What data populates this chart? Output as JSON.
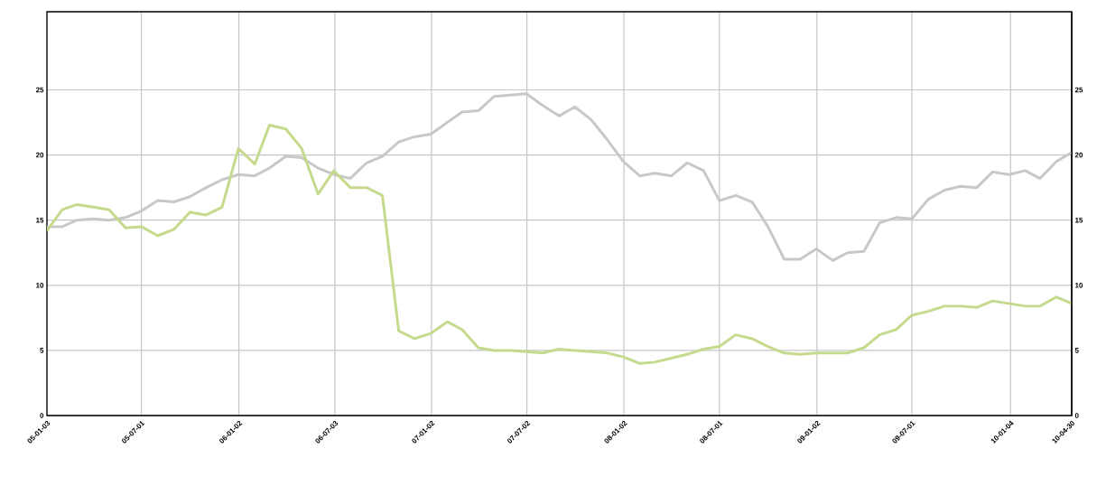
{
  "chart_data": {
    "type": "line",
    "x": [
      "2005-01-03",
      "2005-02",
      "2005-03",
      "2005-04",
      "2005-05",
      "2005-06",
      "2005-07",
      "2005-08",
      "2005-09",
      "2005-10",
      "2005-11",
      "2005-12",
      "2006-01",
      "2006-02",
      "2006-03",
      "2006-04",
      "2006-05",
      "2006-06",
      "2006-07",
      "2006-08",
      "2006-09",
      "2006-10",
      "2006-11",
      "2006-12",
      "2007-01",
      "2007-02",
      "2007-03",
      "2007-04",
      "2007-05",
      "2007-06",
      "2007-07",
      "2007-08",
      "2007-09",
      "2007-10",
      "2007-11",
      "2007-12",
      "2008-01",
      "2008-02",
      "2008-03",
      "2008-04",
      "2008-05",
      "2008-06",
      "2008-07",
      "2008-08",
      "2008-09",
      "2008-10",
      "2008-11",
      "2008-12",
      "2009-01",
      "2009-02",
      "2009-03",
      "2009-04",
      "2009-05",
      "2009-06",
      "2009-07",
      "2009-08",
      "2009-09",
      "2009-10",
      "2009-11",
      "2009-12",
      "2010-01",
      "2010-02",
      "2010-03",
      "2010-04",
      "2010-04-30"
    ],
    "series": [
      {
        "color": "#c8c8c8",
        "values": [
          14.5,
          14.5,
          15.0,
          15.1,
          15.0,
          15.2,
          15.7,
          16.5,
          16.4,
          16.8,
          17.5,
          18.1,
          18.5,
          18.4,
          19.0,
          19.9,
          19.8,
          19.0,
          18.5,
          18.2,
          19.4,
          19.9,
          21.0,
          21.4,
          21.6,
          22.5,
          23.3,
          23.4,
          24.5,
          24.6,
          24.7,
          23.8,
          23.0,
          23.7,
          22.7,
          21.2,
          19.5,
          18.4,
          18.6,
          18.4,
          19.4,
          18.8,
          16.5,
          16.9,
          16.4,
          14.5,
          12.0,
          12.0,
          12.8,
          11.9,
          12.5,
          12.6,
          14.8,
          15.2,
          15.1,
          16.6,
          17.3,
          17.6,
          17.5,
          18.7,
          18.5,
          18.8,
          18.2,
          19.5,
          20.2
        ]
      },
      {
        "color": "#c5da8c",
        "values": [
          14.2,
          15.8,
          16.2,
          16.0,
          15.8,
          14.4,
          14.5,
          13.8,
          14.3,
          15.6,
          15.4,
          16.0,
          20.5,
          19.3,
          22.3,
          22.0,
          20.5,
          17.0,
          18.8,
          17.5,
          17.5,
          16.9,
          6.5,
          5.9,
          6.3,
          7.2,
          6.6,
          5.2,
          5.0,
          5.0,
          4.9,
          4.8,
          5.1,
          5.0,
          4.9,
          4.8,
          4.5,
          4.0,
          4.1,
          4.4,
          4.7,
          5.1,
          5.3,
          6.2,
          5.9,
          5.3,
          4.8,
          4.7,
          4.8,
          4.8,
          4.8,
          5.2,
          6.2,
          6.6,
          7.7,
          8.0,
          8.4,
          8.4,
          8.3,
          8.8,
          8.6,
          8.4,
          8.4,
          9.1,
          8.6
        ]
      }
    ],
    "xlim": [
      "2005-01-03",
      "2010-04-30"
    ],
    "xticks": [
      {
        "value": "2005-01-03",
        "label": "05-01-03"
      },
      {
        "value": "2005-07-01",
        "label": "05-07-01"
      },
      {
        "value": "2006-01-02",
        "label": "06-01-02"
      },
      {
        "value": "2006-07-03",
        "label": "06-07-03"
      },
      {
        "value": "2007-01-02",
        "label": "07-01-02"
      },
      {
        "value": "2007-07-02",
        "label": "07-07-02"
      },
      {
        "value": "2008-01-02",
        "label": "08-01-02"
      },
      {
        "value": "2008-07-01",
        "label": "08-07-01"
      },
      {
        "value": "2009-01-02",
        "label": "09-01-02"
      },
      {
        "value": "2009-07-01",
        "label": "09-07-01"
      },
      {
        "value": "2010-01-04",
        "label": "10-01-04"
      },
      {
        "value": "2010-04-30",
        "label": "10-04-30"
      }
    ],
    "ylim": [
      0,
      31
    ],
    "yticks": [
      0,
      5,
      10,
      15,
      20,
      25
    ],
    "y2lim": [
      0,
      31
    ],
    "y2ticks": [
      0,
      5,
      10,
      15,
      20,
      25
    ],
    "grid": true,
    "marker": "none",
    "line_style": "solid"
  }
}
